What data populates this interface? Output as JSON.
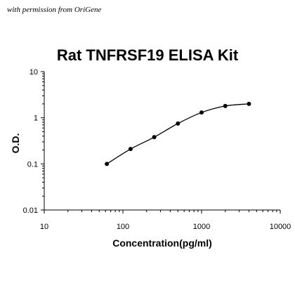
{
  "watermark": "with permission from OriGene",
  "chart_data": {
    "type": "line",
    "title": "Rat TNFRSF19 ELISA Kit",
    "xlabel": "Concentration(pg/ml)",
    "ylabel": "O.D.",
    "x_scale": "log",
    "y_scale": "log",
    "xlim": [
      10,
      10000
    ],
    "ylim": [
      0.01,
      10
    ],
    "x_ticks": [
      "10",
      "100",
      "1000",
      "10000"
    ],
    "y_ticks": [
      "10",
      "1",
      "0.1",
      "0.01"
    ],
    "grid": false,
    "series": [
      {
        "x": [
          62.5,
          125,
          250,
          500,
          1000,
          2000,
          4000
        ],
        "y": [
          0.1,
          0.21,
          0.38,
          0.75,
          1.3,
          1.8,
          2.0
        ]
      }
    ]
  }
}
